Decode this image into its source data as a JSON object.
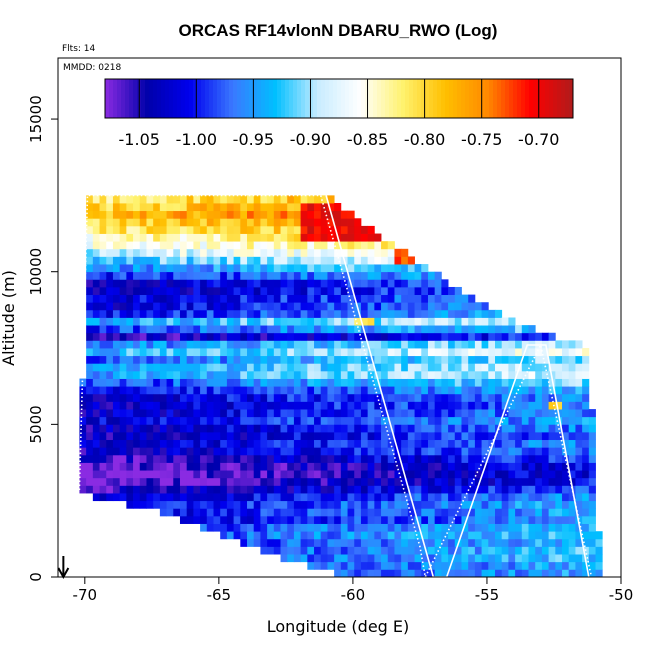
{
  "chart_data": {
    "type": "heatmap",
    "title": "ORCAS RF14vlonN DBARU_RWO (Log)",
    "notes": {
      "flights": "Flts: 14",
      "date": "MMDD: 0218"
    },
    "xlabel": "Longitude (deg E)",
    "ylabel": "Altitude (m)",
    "xlim": [
      -71,
      -50
    ],
    "ylim": [
      0,
      17000
    ],
    "x_ticks": [
      -70,
      -65,
      -60,
      -55,
      -50
    ],
    "x_tick_labels": [
      "-70",
      "-65",
      "-60",
      "-55",
      "-50"
    ],
    "y_ticks": [
      0,
      5000,
      10000,
      15000
    ],
    "y_tick_labels": [
      "0",
      "5000",
      "10000",
      "15000"
    ],
    "colorbar": {
      "range": [
        -1.08,
        -0.67
      ],
      "ticks": [
        -1.05,
        -1.0,
        -0.95,
        -0.9,
        -0.85,
        -0.8,
        -0.75,
        -0.7
      ],
      "tick_labels": [
        "-1.05",
        "-1.00",
        "-0.95",
        "-0.90",
        "-0.85",
        "-0.80",
        "-0.75",
        "-0.70"
      ],
      "colors": [
        "#8a2be2",
        "#0000aa",
        "#0000ee",
        "#3a78ff",
        "#00bfff",
        "#c8ecff",
        "#ffffff",
        "#fff26e",
        "#ffbf00",
        "#ff8800",
        "#ff0000",
        "#b01b1b"
      ]
    },
    "grid": {
      "lon_start": -70.2,
      "lon_step": 0.25,
      "alt_start": 0,
      "alt_step": 250,
      "max_alt": 12500
    },
    "coverage_top": [
      [
        -70.3,
        2850
      ],
      [
        -70.0,
        7600
      ],
      [
        -69.9,
        12500
      ],
      [
        -61.0,
        12500
      ],
      [
        -59.5,
        11500
      ],
      [
        -57.3,
        10200
      ],
      [
        -56.0,
        9400
      ],
      [
        -54.5,
        8600
      ],
      [
        -52.8,
        8000
      ],
      [
        -51.3,
        7600
      ],
      [
        -51.0,
        4800
      ],
      [
        -50.8,
        1000
      ]
    ],
    "coverage_bottom": [
      [
        -70.3,
        2850
      ],
      [
        -69.3,
        2500
      ],
      [
        -67.5,
        2200
      ],
      [
        -66.0,
        1700
      ],
      [
        -64.5,
        1200
      ],
      [
        -63.0,
        700
      ],
      [
        -61.5,
        350
      ],
      [
        -60.5,
        100
      ],
      [
        -58.5,
        0
      ],
      [
        -50.8,
        0
      ]
    ],
    "flight_track_white_solid": [
      [
        -61.0,
        12500
      ],
      [
        -57.0,
        0
      ],
      [
        -56.5,
        0
      ],
      [
        -53.5,
        7600
      ],
      [
        -52.8,
        7600
      ],
      [
        -51.2,
        0
      ]
    ],
    "flight_track_white_dotted": [
      [
        -70.2,
        2850
      ],
      [
        -69.9,
        12500
      ],
      [
        -61.2,
        12500
      ],
      [
        -57.5,
        1000
      ],
      [
        -57.3,
        0
      ],
      [
        -53.0,
        7600
      ],
      [
        -51.1,
        0
      ]
    ],
    "bands": [
      {
        "alt": 12300,
        "v": -0.78
      },
      {
        "alt": 11900,
        "v": -0.74
      },
      {
        "alt": 11500,
        "v": -0.77
      },
      {
        "alt": 11100,
        "v": -0.81
      },
      {
        "alt": 10700,
        "v": -0.84
      },
      {
        "alt": 10300,
        "v": -0.9
      },
      {
        "alt": 9900,
        "v": -0.96
      },
      {
        "alt": 9500,
        "v": -1.01
      },
      {
        "alt": 9100,
        "v": -0.98
      },
      {
        "alt": 8700,
        "v": -0.99
      },
      {
        "alt": 8300,
        "v": -0.89
      },
      {
        "alt": 7900,
        "v": -1.03
      },
      {
        "alt": 7500,
        "v": -0.88
      },
      {
        "alt": 7100,
        "v": -0.94
      },
      {
        "alt": 6700,
        "v": -0.9
      },
      {
        "alt": 6300,
        "v": -0.96
      },
      {
        "alt": 5900,
        "v": -0.99
      },
      {
        "alt": 5500,
        "v": -1.0
      },
      {
        "alt": 5100,
        "v": -0.98
      },
      {
        "alt": 4700,
        "v": -1.01
      },
      {
        "alt": 4300,
        "v": -0.99
      },
      {
        "alt": 3900,
        "v": -1.02
      },
      {
        "alt": 3500,
        "v": -1.05
      },
      {
        "alt": 3100,
        "v": -1.04
      },
      {
        "alt": 2700,
        "v": -1.0
      },
      {
        "alt": 2300,
        "v": -0.97
      },
      {
        "alt": 1900,
        "v": -0.99
      },
      {
        "alt": 1500,
        "v": -0.95
      },
      {
        "alt": 1100,
        "v": -0.97
      },
      {
        "alt": 700,
        "v": -0.96
      },
      {
        "alt": 300,
        "v": -0.98
      }
    ],
    "hotspots": [
      {
        "lon_min": -62.0,
        "lon_max": -57.5,
        "alt_min": 11000,
        "alt_max": 12300,
        "v": -0.7
      },
      {
        "lon_min": -58.5,
        "lon_max": -55.5,
        "alt_min": 10200,
        "alt_max": 11200,
        "v": -0.73
      },
      {
        "lon_min": -60.0,
        "lon_max": -59.2,
        "alt_min": 8300,
        "alt_max": 8600,
        "v": -0.8
      },
      {
        "lon_min": -52.6,
        "lon_max": -52.2,
        "alt_min": 5500,
        "alt_max": 5800,
        "v": -0.8
      }
    ],
    "arrow_lon": -70.8
  }
}
